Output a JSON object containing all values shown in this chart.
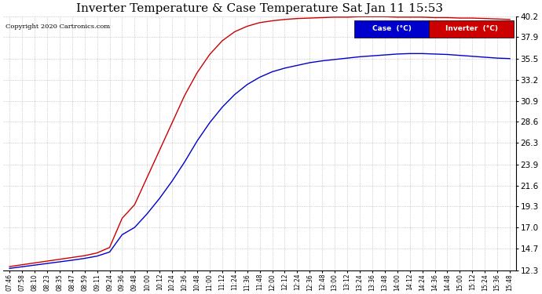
{
  "title": "Inverter Temperature & Case Temperature Sat Jan 11 15:53",
  "copyright": "Copyright 2020 Cartronics.com",
  "yticks": [
    12.3,
    14.7,
    17.0,
    19.3,
    21.6,
    23.9,
    26.3,
    28.6,
    30.9,
    33.2,
    35.5,
    37.9,
    40.2
  ],
  "xtick_labels": [
    "07:46",
    "07:58",
    "08:10",
    "08:23",
    "08:35",
    "08:47",
    "08:59",
    "09:11",
    "09:24",
    "09:36",
    "09:48",
    "10:00",
    "10:12",
    "10:24",
    "10:36",
    "10:48",
    "11:00",
    "11:12",
    "11:24",
    "11:36",
    "11:48",
    "12:00",
    "12:12",
    "12:24",
    "12:36",
    "12:48",
    "13:00",
    "13:12",
    "13:24",
    "13:36",
    "13:48",
    "14:00",
    "14:12",
    "14:24",
    "14:36",
    "14:48",
    "15:00",
    "15:12",
    "15:24",
    "15:36",
    "15:48"
  ],
  "legend_case_label": "Case  (°C)",
  "legend_inverter_label": "Inverter  (°C)",
  "case_color": "#0000cc",
  "inverter_color": "#cc0000",
  "background_color": "#ffffff",
  "grid_color": "#aaaaaa",
  "title_fontsize": 11,
  "ylim": [
    12.3,
    40.2
  ],
  "case_data": [
    12.5,
    12.68,
    12.86,
    13.04,
    13.22,
    13.4,
    13.6,
    13.85,
    14.3,
    16.2,
    17.0,
    18.5,
    20.2,
    22.1,
    24.2,
    26.5,
    28.5,
    30.2,
    31.6,
    32.7,
    33.5,
    34.1,
    34.5,
    34.8,
    35.1,
    35.3,
    35.45,
    35.6,
    35.75,
    35.85,
    35.95,
    36.05,
    36.1,
    36.1,
    36.05,
    36.0,
    35.9,
    35.8,
    35.7,
    35.6,
    35.55
  ],
  "inverter_data": [
    12.7,
    12.9,
    13.1,
    13.3,
    13.5,
    13.7,
    13.9,
    14.2,
    14.8,
    18.0,
    19.5,
    22.5,
    25.5,
    28.5,
    31.5,
    34.0,
    36.0,
    37.5,
    38.5,
    39.1,
    39.5,
    39.7,
    39.85,
    39.95,
    40.0,
    40.05,
    40.1,
    40.1,
    40.15,
    40.15,
    40.15,
    40.1,
    40.1,
    40.1,
    40.05,
    40.05,
    40.0,
    40.0,
    39.95,
    39.9,
    39.85
  ]
}
